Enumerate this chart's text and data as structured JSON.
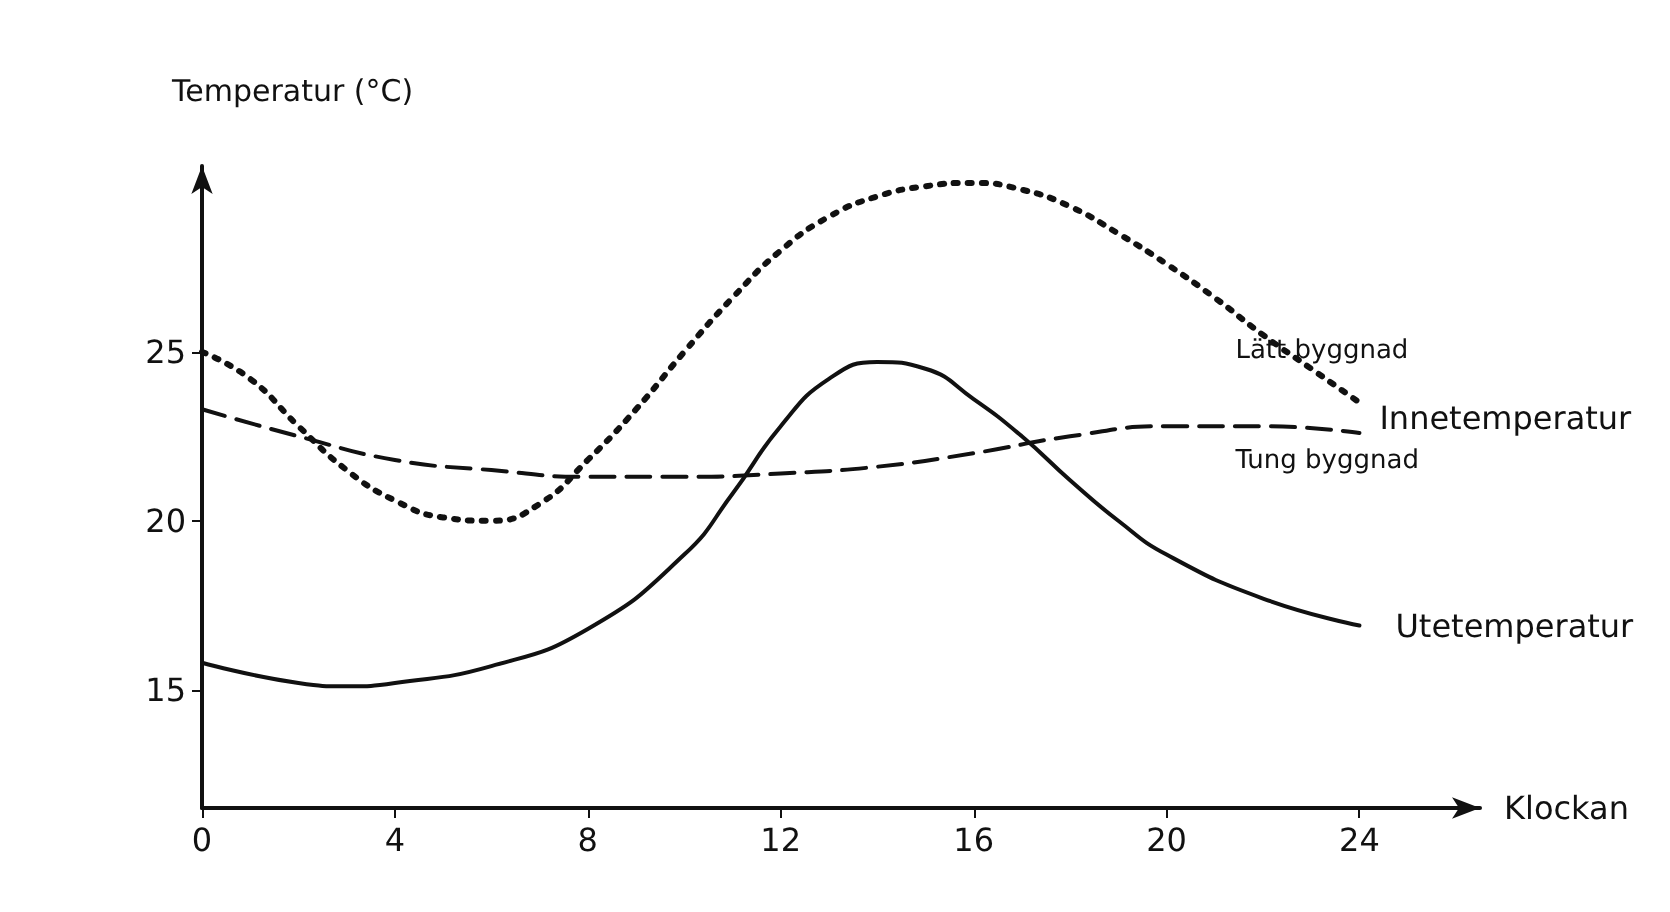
{
  "chart_data": {
    "type": "line",
    "ylabel": "Temperatur (°C)",
    "xlabel": "Klockan",
    "xlim": [
      0,
      26.5
    ],
    "xticks": [
      0,
      4,
      8,
      12,
      16,
      20,
      24
    ],
    "ylim": [
      11.5,
      30.5
    ],
    "yticks": [
      15,
      20,
      25
    ],
    "grid": false,
    "legend": false,
    "marker": "none",
    "annotations": [
      "Innetemperatur"
    ],
    "series": [
      {
        "name": "Lätt byggnad",
        "color": "#111111",
        "line_style": "dotted",
        "x": [
          0,
          1,
          2,
          3,
          4,
          5,
          6,
          7,
          8,
          9,
          10,
          11,
          12,
          13,
          14,
          15,
          16,
          17,
          18,
          19,
          20,
          21,
          22,
          23,
          24
        ],
        "values": [
          25,
          24.2,
          22.8,
          21.5,
          20.6,
          20.1,
          20,
          20.5,
          21.8,
          23.3,
          25,
          26.6,
          28,
          29,
          29.6,
          29.9,
          30,
          29.8,
          29.3,
          28.5,
          27.6,
          26.6,
          25.5,
          24.5,
          23.5
        ]
      },
      {
        "name": "Tung byggnad",
        "color": "#111111",
        "line_style": "dashed",
        "x": [
          0,
          2,
          4,
          6,
          8,
          10,
          12,
          14,
          16,
          18,
          20,
          22,
          24
        ],
        "values": [
          23.3,
          22.5,
          21.8,
          21.5,
          21.3,
          21.3,
          21.4,
          21.6,
          22,
          22.5,
          22.8,
          22.8,
          22.6
        ]
      },
      {
        "name": "Utetemperatur",
        "color": "#111111",
        "line_style": "solid",
        "x": [
          0,
          2,
          3,
          4,
          6,
          8,
          10,
          11,
          12,
          13,
          14,
          15,
          16,
          17,
          18,
          19,
          20,
          22,
          24
        ],
        "values": [
          15.8,
          15.2,
          15.1,
          15.2,
          15.7,
          16.8,
          19,
          20.8,
          22.8,
          24.2,
          24.7,
          24.5,
          23.6,
          22.5,
          21.2,
          20,
          19,
          17.7,
          16.9
        ]
      }
    ]
  }
}
